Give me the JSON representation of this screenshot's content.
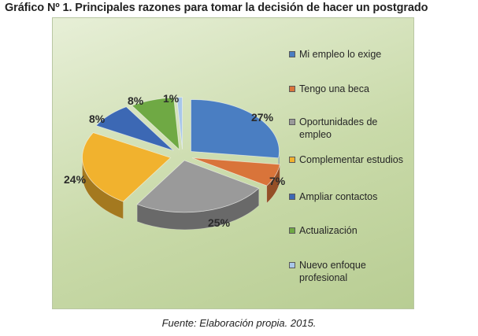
{
  "figure": {
    "title": "Gráfico Nº 1. Principales razones para tomar la decisión de hacer un postgrado",
    "source": "Fuente: Elaboración propia. 2015."
  },
  "chart_data": {
    "type": "pie",
    "title": "Gráfico Nº 1. Principales razones para tomar la decisión de hacer un postgrado",
    "legend_position": "right",
    "categories": [
      "Mi empleo lo exige",
      "Tengo una beca",
      "Oportunidades de empleo",
      "Complementar estudios",
      "Ampliar contactos",
      "Actualización",
      "Nuevo enfoque profesional"
    ],
    "values": [
      27,
      7,
      25,
      24,
      8,
      8,
      1
    ],
    "labels": [
      "27%",
      "7%",
      "25%",
      "24%",
      "8%",
      "8%",
      "1%"
    ],
    "colors": [
      "#4a7ec2",
      "#d9743a",
      "#9a9a9a",
      "#f1b22e",
      "#3c68b4",
      "#6fa944",
      "#a9c7ea"
    ]
  }
}
